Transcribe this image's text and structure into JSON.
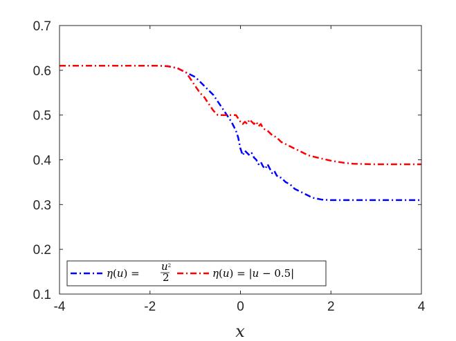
{
  "chart_data": {
    "type": "line",
    "title": "",
    "xlabel": "x",
    "ylabel": "",
    "xlim": [
      -4,
      4
    ],
    "ylim": [
      0.1,
      0.7
    ],
    "xticks": [
      "-4",
      "-2",
      "0",
      "2",
      "4"
    ],
    "yticks": [
      "0.1",
      "0.2",
      "0.3",
      "0.4",
      "0.5",
      "0.6",
      "0.7"
    ],
    "grid": false,
    "legend_placement": "bottom-left",
    "series": [
      {
        "name": "η(u) = u²/2",
        "color": "#0000ff",
        "style": "dash-dot",
        "x": [
          -4,
          -2.5,
          -2.0,
          -1.8,
          -1.6,
          -1.4,
          -1.2,
          -1.0,
          -0.9,
          -0.8,
          -0.7,
          -0.6,
          -0.5,
          -0.4,
          -0.3,
          -0.2,
          -0.1,
          -0.05,
          0.0,
          0.05,
          0.1,
          0.15,
          0.2,
          0.25,
          0.3,
          0.35,
          0.4,
          0.45,
          0.5,
          0.55,
          0.6,
          0.65,
          0.7,
          0.75,
          0.8,
          0.85,
          0.9,
          1.0,
          1.1,
          1.2,
          1.3,
          1.4,
          1.5,
          1.6,
          1.7,
          1.8,
          2.0,
          2.5,
          3.0,
          4.0
        ],
        "y": [
          0.61,
          0.61,
          0.61,
          0.61,
          0.609,
          0.605,
          0.595,
          0.585,
          0.575,
          0.565,
          0.555,
          0.545,
          0.53,
          0.515,
          0.5,
          0.485,
          0.465,
          0.45,
          0.425,
          0.41,
          0.42,
          0.415,
          0.41,
          0.415,
          0.405,
          0.4,
          0.39,
          0.395,
          0.385,
          0.38,
          0.39,
          0.38,
          0.37,
          0.375,
          0.365,
          0.36,
          0.36,
          0.35,
          0.345,
          0.335,
          0.33,
          0.325,
          0.32,
          0.315,
          0.313,
          0.311,
          0.31,
          0.31,
          0.31,
          0.31
        ]
      },
      {
        "name": "η(u) = |u − 0.5|",
        "color": "#ff0000",
        "style": "dash-dot",
        "x": [
          -4,
          -2.5,
          -2.0,
          -1.8,
          -1.6,
          -1.4,
          -1.2,
          -1.1,
          -1.0,
          -0.9,
          -0.8,
          -0.7,
          -0.6,
          -0.5,
          -0.4,
          -0.3,
          -0.2,
          -0.1,
          0.0,
          0.05,
          0.1,
          0.15,
          0.2,
          0.25,
          0.3,
          0.35,
          0.4,
          0.45,
          0.5,
          0.6,
          0.7,
          0.8,
          0.9,
          1.0,
          1.1,
          1.2,
          1.3,
          1.5,
          1.7,
          2.0,
          2.3,
          2.5,
          3.0,
          4.0
        ],
        "y": [
          0.61,
          0.61,
          0.61,
          0.61,
          0.609,
          0.605,
          0.595,
          0.58,
          0.565,
          0.55,
          0.54,
          0.525,
          0.51,
          0.5,
          0.5,
          0.5,
          0.5,
          0.5,
          0.485,
          0.48,
          0.485,
          0.48,
          0.49,
          0.485,
          0.48,
          0.485,
          0.475,
          0.48,
          0.47,
          0.465,
          0.455,
          0.45,
          0.44,
          0.435,
          0.43,
          0.425,
          0.42,
          0.41,
          0.405,
          0.398,
          0.393,
          0.391,
          0.39,
          0.39
        ]
      }
    ]
  }
}
